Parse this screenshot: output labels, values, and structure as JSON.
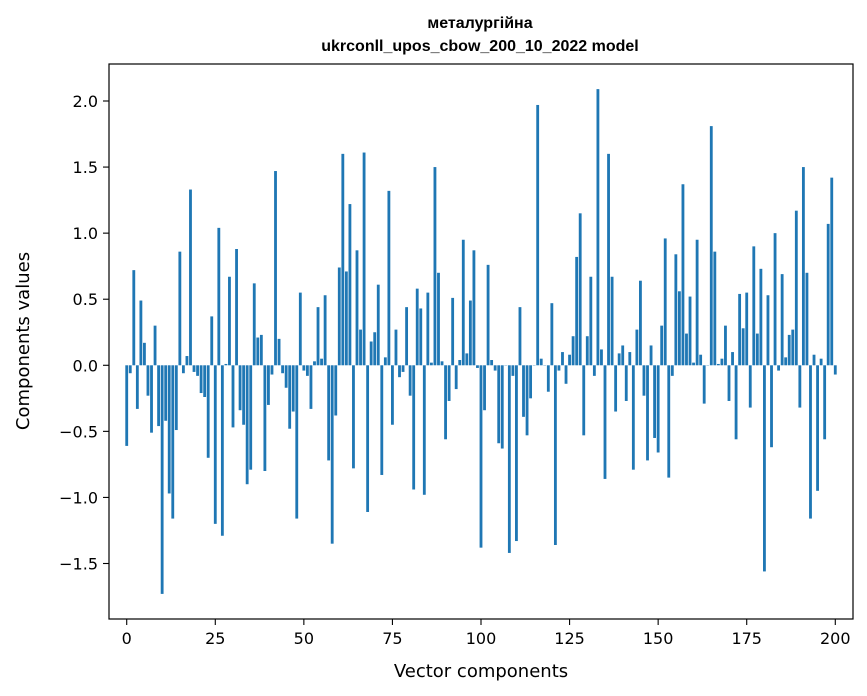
{
  "chart_data": {
    "type": "bar",
    "title_line1": "металургійна",
    "title_line2": "ukrconll_upos_cbow_200_10_2022 model",
    "xlabel": "Vector components",
    "ylabel": "Components values",
    "xlim": [
      -5,
      205
    ],
    "ylim": [
      -1.92,
      2.28
    ],
    "xticks": [
      0,
      25,
      50,
      75,
      100,
      125,
      150,
      175,
      200
    ],
    "xtick_labels": [
      "0",
      "25",
      "50",
      "75",
      "100",
      "125",
      "150",
      "175",
      "200"
    ],
    "yticks": [
      -1.5,
      -1.0,
      -0.5,
      0.0,
      0.5,
      1.0,
      1.5,
      2.0
    ],
    "ytick_labels": [
      "−1.5",
      "−1.0",
      "−0.5",
      "0.0",
      "0.5",
      "1.0",
      "1.5",
      "2.0"
    ],
    "color": "#1f77b4",
    "values": [
      -0.61,
      -0.06,
      0.72,
      -0.33,
      0.49,
      0.17,
      -0.23,
      -0.51,
      0.3,
      -0.46,
      -1.73,
      -0.42,
      -0.97,
      -1.16,
      -0.49,
      0.86,
      -0.06,
      0.07,
      1.33,
      -0.05,
      -0.08,
      -0.21,
      -0.24,
      -0.7,
      0.37,
      -1.2,
      1.04,
      -1.29,
      0.01,
      0.67,
      -0.47,
      0.88,
      -0.34,
      -0.45,
      -0.9,
      -0.79,
      0.62,
      0.21,
      0.23,
      -0.8,
      -0.3,
      -0.07,
      1.47,
      0.2,
      -0.06,
      -0.17,
      -0.48,
      -0.35,
      -1.16,
      0.55,
      -0.04,
      -0.08,
      -0.33,
      0.03,
      0.44,
      0.05,
      0.53,
      -0.72,
      -1.35,
      -0.38,
      0.74,
      1.6,
      0.71,
      1.22,
      -0.78,
      0.87,
      0.27,
      1.61,
      -1.11,
      0.18,
      0.25,
      0.61,
      -0.83,
      0.06,
      1.32,
      -0.45,
      0.27,
      -0.09,
      -0.05,
      0.44,
      -0.23,
      -0.94,
      0.58,
      0.43,
      -0.98,
      0.55,
      0.02,
      1.5,
      0.7,
      0.03,
      -0.56,
      -0.27,
      0.51,
      -0.18,
      0.04,
      0.95,
      0.09,
      0.49,
      0.87,
      -0.02,
      -1.38,
      -0.34,
      0.76,
      0.04,
      -0.04,
      -0.59,
      -0.63,
      0.0,
      -1.42,
      -0.08,
      -1.33,
      0.44,
      -0.39,
      -0.53,
      -0.25,
      0.0,
      1.97,
      0.05,
      0.0,
      -0.2,
      0.47,
      -1.36,
      -0.04,
      0.1,
      -0.14,
      0.08,
      0.22,
      0.82,
      1.15,
      -0.53,
      0.22,
      0.67,
      -0.08,
      2.09,
      0.12,
      -0.86,
      1.6,
      0.67,
      -0.35,
      0.09,
      0.15,
      -0.27,
      0.1,
      -0.79,
      0.27,
      0.64,
      -0.23,
      -0.72,
      0.15,
      -0.55,
      -0.66,
      0.3,
      0.96,
      -0.85,
      -0.08,
      0.84,
      0.56,
      1.37,
      0.24,
      0.52,
      0.02,
      0.95,
      0.08,
      -0.29,
      0.0,
      1.81,
      0.86,
      0.01,
      0.05,
      0.3,
      -0.27,
      0.1,
      -0.56,
      0.54,
      0.28,
      0.55,
      -0.32,
      0.9,
      0.24,
      0.73,
      -1.56,
      0.53,
      -0.62,
      1.0,
      -0.04,
      0.69,
      0.06,
      0.23,
      0.27,
      1.17,
      -0.32,
      1.5,
      0.7,
      -1.16,
      0.08,
      -0.95,
      0.05,
      -0.56,
      1.07,
      1.42,
      -0.07
    ]
  }
}
